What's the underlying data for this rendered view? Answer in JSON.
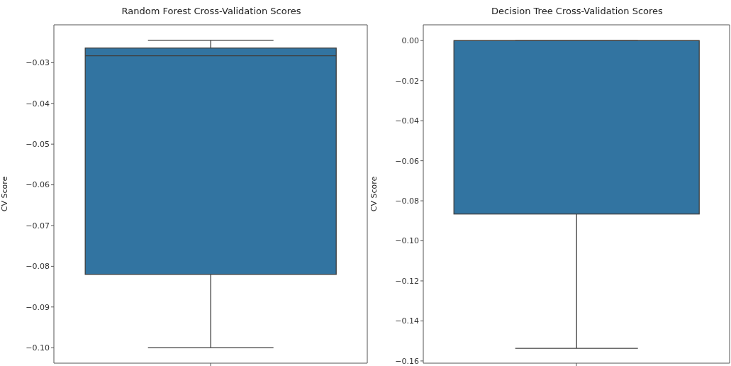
{
  "chart_data": [
    {
      "type": "box",
      "title": "Random Forest Cross-Validation Scores",
      "ylabel": "CV Score",
      "categories": [
        null
      ],
      "color": "#3274a1",
      "boxes": [
        {
          "low": -0.1,
          "q1": -0.082,
          "median": -0.0283,
          "q3": -0.0264,
          "high": -0.0245
        }
      ],
      "ylim": [
        -0.1038,
        -0.0207
      ],
      "yticks": [
        {
          "value": -0.1,
          "label": "−0.10"
        },
        {
          "value": -0.09,
          "label": "−0.09"
        },
        {
          "value": -0.08,
          "label": "−0.08"
        },
        {
          "value": -0.07,
          "label": "−0.07"
        },
        {
          "value": -0.06,
          "label": "−0.06"
        },
        {
          "value": -0.05,
          "label": "−0.05"
        },
        {
          "value": -0.04,
          "label": "−0.04"
        },
        {
          "value": -0.03,
          "label": "−0.03"
        }
      ]
    },
    {
      "type": "box",
      "title": "Decision Tree Cross-Validation Scores",
      "ylabel": "CV Score",
      "categories": [
        null
      ],
      "color": "#3274a1",
      "boxes": [
        {
          "low": -0.1537,
          "q1": -0.0866,
          "median": 0,
          "q3": 0,
          "high": 0
        }
      ],
      "ylim": [
        -0.1611,
        0.0079
      ],
      "yticks": [
        {
          "value": -0.16,
          "label": "−0.16"
        },
        {
          "value": -0.14,
          "label": "−0.14"
        },
        {
          "value": -0.12,
          "label": "−0.12"
        },
        {
          "value": -0.1,
          "label": "−0.10"
        },
        {
          "value": -0.08,
          "label": "−0.08"
        },
        {
          "value": -0.06,
          "label": "−0.06"
        },
        {
          "value": -0.04,
          "label": "−0.04"
        },
        {
          "value": -0.02,
          "label": "−0.02"
        },
        {
          "value": 0,
          "label": "0.00"
        }
      ]
    }
  ]
}
